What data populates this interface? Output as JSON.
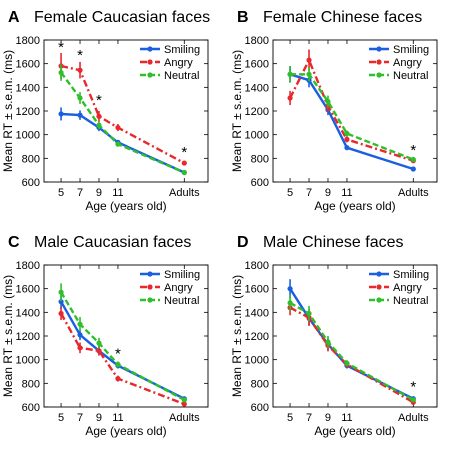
{
  "chart_data": [
    {
      "type": "line",
      "panel_letter": "A",
      "title": "Female Caucasian faces",
      "xlabel": "Age (years old)",
      "ylabel": "Mean RT ± s.e.m. (ms)",
      "x": [
        5,
        7,
        9,
        11,
        18
      ],
      "x_tick_labels": [
        "5",
        "7",
        "9",
        "11",
        "Adults"
      ],
      "ylim": [
        600,
        1800
      ],
      "y_ticks": [
        600,
        800,
        1000,
        1200,
        1400,
        1600,
        1800
      ],
      "legend_position": "top-right",
      "grid": false,
      "series": [
        {
          "name": "Smiling",
          "color": "#1a5fe0",
          "style": "solid",
          "values": [
            1175,
            1165,
            1060,
            935,
            680
          ],
          "err": [
            55,
            40,
            30,
            20,
            15
          ]
        },
        {
          "name": "Angry",
          "color": "#e8282d",
          "style": "dashdot",
          "values": [
            1580,
            1545,
            1155,
            1060,
            760
          ],
          "err": [
            110,
            70,
            45,
            30,
            20
          ]
        },
        {
          "name": "Neutral",
          "color": "#2fbf2a",
          "style": "dashed",
          "values": [
            1525,
            1310,
            1080,
            920,
            680
          ],
          "err": [
            70,
            50,
            35,
            20,
            15
          ]
        }
      ],
      "significance_markers": [
        {
          "x": 5,
          "y": 1750,
          "label": "*"
        },
        {
          "x": 7,
          "y": 1680,
          "label": "*"
        },
        {
          "x": 9,
          "y": 1300,
          "label": "*"
        },
        {
          "x": 18,
          "y": 860,
          "label": "*"
        }
      ]
    },
    {
      "type": "line",
      "panel_letter": "B",
      "title": "Female Chinese faces",
      "xlabel": "Age (years old)",
      "ylabel": "Mean RT ± s.e.m. (ms)",
      "x": [
        5,
        7,
        9,
        11,
        18
      ],
      "x_tick_labels": [
        "5",
        "7",
        "9",
        "11",
        "Adults"
      ],
      "ylim": [
        600,
        1800
      ],
      "y_ticks": [
        600,
        800,
        1000,
        1200,
        1400,
        1600,
        1800
      ],
      "legend_position": "top-right",
      "grid": false,
      "series": [
        {
          "name": "Smiling",
          "color": "#1a5fe0",
          "style": "solid",
          "values": [
            1510,
            1460,
            1210,
            890,
            710
          ],
          "err": [
            70,
            60,
            45,
            20,
            15
          ]
        },
        {
          "name": "Angry",
          "color": "#e8282d",
          "style": "dashdot",
          "values": [
            1310,
            1630,
            1240,
            960,
            780
          ],
          "err": [
            60,
            90,
            50,
            25,
            15
          ]
        },
        {
          "name": "Neutral",
          "color": "#2fbf2a",
          "style": "dashed",
          "values": [
            1510,
            1510,
            1280,
            1010,
            790
          ],
          "err": [
            70,
            60,
            50,
            25,
            15
          ]
        }
      ],
      "significance_markers": [
        {
          "x": 18,
          "y": 880,
          "label": "*"
        }
      ]
    },
    {
      "type": "line",
      "panel_letter": "C",
      "title": "Male Caucasian faces",
      "xlabel": "Age (years old)",
      "ylabel": "Mean RT ± s.e.m. (ms)",
      "x": [
        5,
        7,
        9,
        11,
        18
      ],
      "x_tick_labels": [
        "5",
        "7",
        "9",
        "11",
        "Adults"
      ],
      "ylim": [
        600,
        1800
      ],
      "y_ticks": [
        600,
        800,
        1000,
        1200,
        1400,
        1600,
        1800
      ],
      "legend_position": "top-right",
      "grid": false,
      "series": [
        {
          "name": "Smiling",
          "color": "#1a5fe0",
          "style": "solid",
          "values": [
            1490,
            1210,
            1075,
            950,
            670
          ],
          "err": [
            60,
            45,
            40,
            25,
            15
          ]
        },
        {
          "name": "Angry",
          "color": "#e8282d",
          "style": "dashdot",
          "values": [
            1390,
            1100,
            1075,
            840,
            625
          ],
          "err": [
            55,
            45,
            40,
            25,
            15
          ]
        },
        {
          "name": "Neutral",
          "color": "#2fbf2a",
          "style": "dashed",
          "values": [
            1570,
            1300,
            1140,
            960,
            660
          ],
          "err": [
            75,
            60,
            45,
            25,
            15
          ]
        }
      ],
      "significance_markers": [
        {
          "x": 11,
          "y": 1060,
          "label": "*"
        }
      ]
    },
    {
      "type": "line",
      "panel_letter": "D",
      "title": "Male Chinese faces",
      "xlabel": "Age (years old)",
      "ylabel": "Mean RT ± s.e.m. (ms)",
      "x": [
        5,
        7,
        9,
        11,
        18
      ],
      "x_tick_labels": [
        "5",
        "7",
        "9",
        "11",
        "Adults"
      ],
      "ylim": [
        600,
        1800
      ],
      "y_ticks": [
        600,
        800,
        1000,
        1200,
        1400,
        1600,
        1800
      ],
      "legend_position": "top-right",
      "grid": false,
      "series": [
        {
          "name": "Smiling",
          "color": "#1a5fe0",
          "style": "solid",
          "values": [
            1600,
            1350,
            1130,
            950,
            670
          ],
          "err": [
            80,
            60,
            50,
            25,
            20
          ]
        },
        {
          "name": "Angry",
          "color": "#e8282d",
          "style": "dashdot",
          "values": [
            1440,
            1355,
            1120,
            960,
            640
          ],
          "err": [
            65,
            70,
            50,
            25,
            15
          ]
        },
        {
          "name": "Neutral",
          "color": "#2fbf2a",
          "style": "dashed",
          "values": [
            1480,
            1390,
            1150,
            970,
            660
          ],
          "err": [
            70,
            65,
            50,
            25,
            15
          ]
        }
      ],
      "significance_markers": [
        {
          "x": 18,
          "y": 780,
          "label": "*"
        }
      ]
    }
  ]
}
